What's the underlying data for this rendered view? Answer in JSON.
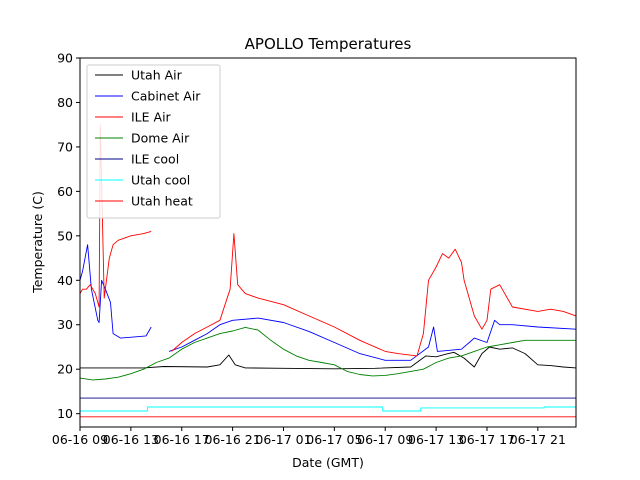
{
  "chart_data": {
    "type": "line",
    "title": "APOLLO Temperatures",
    "xlabel": "Date (GMT)",
    "ylabel": "Temperature (C)",
    "ylim": [
      7,
      90
    ],
    "xlim": [
      0,
      39
    ],
    "grid": false,
    "legend_placement": "top-left",
    "yticks": [
      10,
      20,
      30,
      40,
      50,
      60,
      70,
      80,
      90
    ],
    "xticks": [
      {
        "x": 0,
        "label": "06-16 09"
      },
      {
        "x": 4,
        "label": "06-16 13"
      },
      {
        "x": 8,
        "label": "06-16 17"
      },
      {
        "x": 12,
        "label": "06-16 21"
      },
      {
        "x": 16,
        "label": "06-17 01"
      },
      {
        "x": 20,
        "label": "06-17 05"
      },
      {
        "x": 24,
        "label": "06-17 09"
      },
      {
        "x": 28,
        "label": "06-17 13"
      },
      {
        "x": 32,
        "label": "06-17 17"
      },
      {
        "x": 36,
        "label": "06-17 21"
      }
    ],
    "series": [
      {
        "name": "Utah Air",
        "color": "#000000",
        "x": [
          0,
          5,
          6.6,
          10,
          11,
          11.7,
          12.2,
          13,
          16,
          20,
          23.2,
          26,
          27.2,
          28,
          28.8,
          29.4,
          30.2,
          31,
          31.6,
          32.2,
          33,
          34,
          35,
          36,
          37,
          38,
          39
        ],
        "y": [
          20.3,
          20.3,
          20.6,
          20.5,
          21,
          23.2,
          21,
          20.3,
          20.2,
          20.1,
          20.2,
          20.5,
          23,
          22.8,
          23.4,
          23.8,
          22.5,
          20.5,
          23.5,
          25,
          24.5,
          24.8,
          23.5,
          21,
          20.8,
          20.5,
          20.3
        ]
      },
      {
        "name": "Cabinet Air",
        "color": "#0000ff",
        "x": [
          0,
          0.2,
          0.6,
          0.9,
          1.4,
          1.5,
          1.7,
          2.0,
          2.4,
          2.6,
          3.2,
          5.2,
          5.6,
          6.6,
          7.0,
          8.0,
          9.0,
          10.0,
          11.0,
          12.0,
          14.0,
          16.0,
          18.0,
          20.0,
          22.0,
          24.0,
          26.0,
          27.4,
          27.8,
          28.1,
          30.0,
          31.0,
          32.0,
          32.6,
          33.0,
          34.0,
          36.0,
          39.0
        ],
        "y": [
          40,
          42,
          48,
          38,
          31,
          30.5,
          40,
          38,
          35,
          28,
          27,
          27.5,
          29.5,
          null,
          24,
          25,
          26.5,
          28,
          30,
          31,
          31.5,
          30.5,
          28.5,
          26,
          23.5,
          22,
          22,
          25,
          29.5,
          24,
          24.5,
          27,
          26,
          31,
          30,
          30,
          29.5,
          29
        ]
      },
      {
        "name": "ILE Air",
        "color": "#ff0000",
        "x": [
          0,
          0.2,
          0.5,
          0.8,
          1.2,
          1.5,
          1.6,
          1.9,
          2.3,
          2.6,
          3.0,
          3.5,
          4.0,
          5.0,
          5.6,
          6.6,
          7.2,
          8.0,
          9.0,
          10.0,
          11.0,
          11.8,
          12.1,
          12.4,
          13.0,
          14.0,
          16.0,
          18.0,
          20.0,
          22.0,
          24.0,
          25.0,
          26.5,
          27.0,
          27.4,
          28.0,
          28.5,
          29.0,
          29.5,
          30.0,
          30.2,
          31.0,
          31.6,
          32.0,
          32.3,
          33.0,
          34.0,
          36.0,
          37.0,
          38.0,
          39.0
        ],
        "y": [
          37,
          38,
          38,
          39,
          37,
          34,
          75,
          36,
          45,
          48,
          49,
          49.5,
          50,
          50.5,
          51,
          null,
          24,
          26,
          28,
          29.5,
          31,
          38,
          50.5,
          39,
          37,
          36,
          34.5,
          32,
          29.5,
          26.5,
          24,
          23.5,
          23,
          28,
          40,
          43,
          46,
          45,
          47,
          44,
          40,
          32,
          29,
          31,
          38,
          39,
          34,
          33,
          33.5,
          33,
          32
        ]
      },
      {
        "name": "Dome Air",
        "color": "#008000",
        "x": [
          0,
          1,
          2,
          3,
          4,
          5,
          6,
          7,
          8,
          9,
          10,
          11,
          12,
          13,
          14,
          15,
          16,
          17,
          18,
          19,
          20,
          21,
          22,
          23,
          24,
          25,
          26,
          27,
          28,
          29,
          30,
          31,
          32,
          33,
          34,
          35,
          36,
          37,
          38,
          39
        ],
        "y": [
          18,
          17.6,
          17.8,
          18.2,
          19,
          20,
          21.5,
          22.5,
          24.5,
          26,
          27,
          28,
          28.6,
          29.4,
          28.8,
          26.5,
          24.5,
          23,
          22,
          21.5,
          21,
          19.5,
          18.8,
          18.5,
          18.6,
          19,
          19.5,
          20,
          21.5,
          22.5,
          23,
          24,
          25,
          25.5,
          26,
          26.5,
          26.5,
          26.5,
          26.5,
          26.5
        ]
      },
      {
        "name": "ILE cool",
        "color": "#00008b",
        "x": [
          0,
          39
        ],
        "y": [
          13.5,
          13.5
        ]
      },
      {
        "name": "Utah cool",
        "color": "#00ffff",
        "x": [
          0,
          5.3,
          5.3,
          11.8,
          11.8,
          23.8,
          23.8,
          26.8,
          26.8,
          36.5,
          36.5,
          39
        ],
        "y": [
          10.6,
          10.6,
          11.5,
          11.5,
          11.5,
          11.5,
          10.6,
          10.6,
          11.3,
          11.3,
          11.5,
          11.5
        ]
      },
      {
        "name": "Utah heat",
        "color": "#ff0000",
        "x": [
          0,
          39
        ],
        "y": [
          9.3,
          9.3
        ]
      }
    ]
  }
}
